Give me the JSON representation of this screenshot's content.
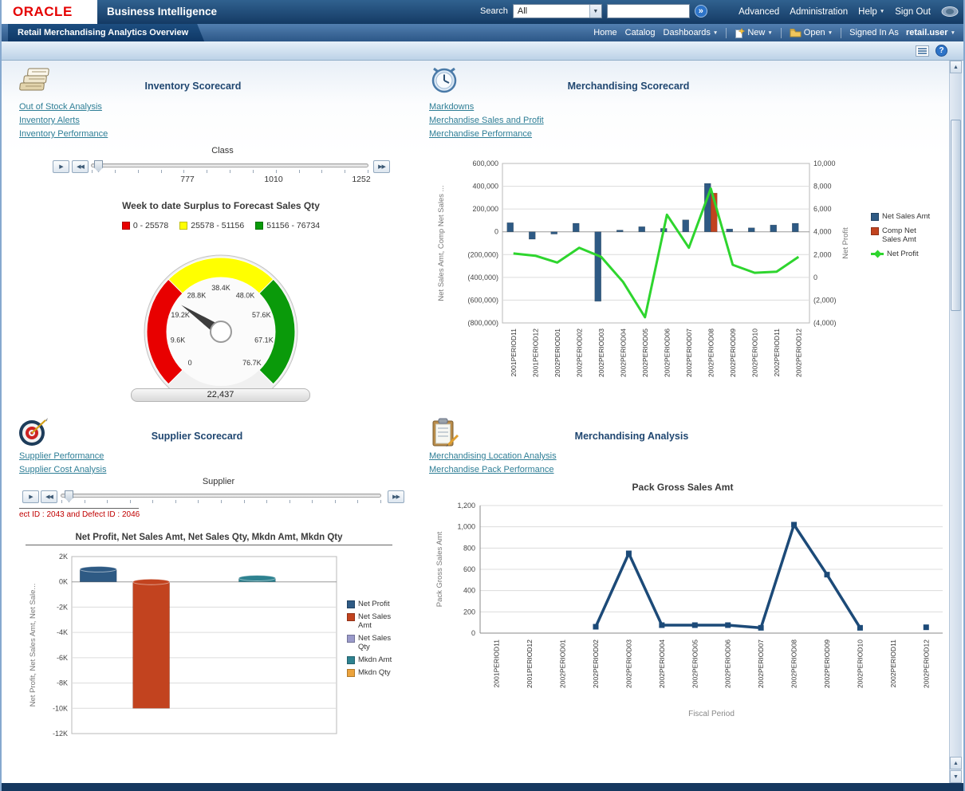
{
  "header": {
    "logo": "ORACLE",
    "product": "Business Intelligence",
    "search_label": "Search",
    "search_scope": "All",
    "search_value": "",
    "go_label": "»",
    "advanced": "Advanced",
    "administration": "Administration",
    "help": "Help",
    "sign_out": "Sign Out"
  },
  "tabbar": {
    "active_tab": "Retail Merchandising Analytics Overview",
    "home": "Home",
    "catalog": "Catalog",
    "dashboards": "Dashboards",
    "new_label": "New",
    "open_label": "Open",
    "signed_in_as": "Signed In As",
    "user": "retail.user"
  },
  "toolbar": {
    "help_label": "?"
  },
  "icons": {
    "play": "▶",
    "step_back": "◀◀",
    "step_forward": "▶▶",
    "caret_down": "▼",
    "caret_up": "▲"
  },
  "sections": {
    "inventory": {
      "title": "Inventory Scorecard",
      "links": [
        "Out of Stock Analysis",
        "Inventory Alerts",
        "Inventory Performance"
      ],
      "prompt_label": "Class",
      "slider_values": [
        "777",
        "1010",
        "1252"
      ],
      "chart_data": {
        "type": "gauge",
        "title": "Week to date Surplus to Forecast Sales Qty",
        "min": 0,
        "max": 76734,
        "value": 22437,
        "value_label": "22,437",
        "bands": [
          {
            "label": "0 - 25578",
            "from": 0,
            "to": 25578,
            "color": "#e80000"
          },
          {
            "label": "25578 - 51156",
            "from": 25578,
            "to": 51156,
            "color": "#ffff00"
          },
          {
            "label": "51156 - 76734",
            "from": 51156,
            "to": 76734,
            "color": "#0a9a0a"
          }
        ],
        "tick_labels": [
          "0",
          "9.6K",
          "19.2K",
          "28.8K",
          "38.4K",
          "48.0K",
          "57.6K",
          "67.1K",
          "76.7K"
        ]
      }
    },
    "merch_scorecard": {
      "title": "Merchandising Scorecard",
      "links": [
        "Markdowns",
        "Merchandise Sales and Profit",
        "Merchandise Performance"
      ],
      "chart_data": {
        "type": "combo",
        "categories": [
          "2001PERIOD11",
          "2001PERIOD12",
          "2002PERIOD01",
          "2002PERIOD02",
          "2002PERIOD03",
          "2002PERIOD04",
          "2002PERIOD05",
          "2002PERIOD06",
          "2002PERIOD07",
          "2002PERIOD08",
          "2002PERIOD09",
          "2002PERIOD10",
          "2002PERIOD11",
          "2002PERIOD12"
        ],
        "left_axis": {
          "label": "Net Sales Amt, Comp Net Sales ...",
          "min": -800000,
          "max": 600000,
          "step": 200000,
          "tick_labels": [
            "600,000",
            "400,000",
            "200,000",
            "0",
            "(200,000)",
            "(400,000)",
            "(600,000)",
            "(800,000)"
          ]
        },
        "right_axis": {
          "label": "Net Profit",
          "min": -4000,
          "max": 10000,
          "step": 2000,
          "tick_labels": [
            "10,000",
            "8,000",
            "6,000",
            "4,000",
            "2,000",
            "0",
            "(2,000)",
            "(4,000)"
          ]
        },
        "series": [
          {
            "name": "Net Sales Amt",
            "type": "bar",
            "axis": "left",
            "color": "#2e5a84",
            "values": [
              80000,
              -65000,
              -20000,
              75000,
              -610000,
              15000,
              45000,
              30000,
              105000,
              425000,
              25000,
              35000,
              60000,
              75000
            ]
          },
          {
            "name": "Comp Net Sales Amt",
            "type": "bar",
            "axis": "left",
            "color": "#c2431f",
            "values": [
              0,
              0,
              0,
              0,
              0,
              0,
              0,
              0,
              0,
              340000,
              0,
              0,
              0,
              0
            ]
          },
          {
            "name": "Net Profit",
            "type": "line",
            "axis": "right",
            "color": "#2ed52e",
            "values": [
              2100,
              1900,
              1300,
              2600,
              1800,
              -400,
              -3500,
              5500,
              2600,
              7800,
              1100,
              400,
              500,
              1800
            ]
          }
        ]
      }
    },
    "supplier": {
      "title": "Supplier Scorecard",
      "links": [
        "Supplier Performance",
        "Supplier Cost Analysis"
      ],
      "prompt_label": "Supplier",
      "note": "ect ID : 2043 and Defect ID : 2046",
      "chart_data": {
        "type": "bar",
        "title": "Net Profit, Net Sales Amt, Net Sales Qty, Mkdn Amt, Mkdn Qty",
        "ylabel": "Net Profit, Net Sales Amt, Net Sale...",
        "ylim": [
          -12000,
          2000
        ],
        "ystep": 2000,
        "ytick_labels": [
          "2K",
          "0K",
          "-2K",
          "-4K",
          "-6K",
          "-8K",
          "-10K",
          "-12K"
        ],
        "series": [
          {
            "name": "Net Profit",
            "color": "#2e5a84",
            "value": 1000
          },
          {
            "name": "Net Sales Amt",
            "color": "#c2431f",
            "value": -10000
          },
          {
            "name": "Net Sales Qty",
            "color": "#9a9aca",
            "value": 0
          },
          {
            "name": "Mkdn Amt",
            "color": "#2e8290",
            "value": 300
          },
          {
            "name": "Mkdn Qty",
            "color": "#eca33c",
            "value": 0
          }
        ]
      }
    },
    "merch_analysis": {
      "title": "Merchandising Analysis",
      "links": [
        "Merchandising Location Analysis",
        "Merchandise Pack Performance"
      ],
      "chart_data": {
        "type": "line",
        "title": "Pack Gross Sales Amt",
        "xlabel": "Fiscal Period",
        "ylabel": "Pack Gross Sales Amt",
        "ylim": [
          0,
          1200
        ],
        "ystep": 200,
        "ytick_labels": [
          "0",
          "200",
          "400",
          "600",
          "800",
          "1,000",
          "1,200"
        ],
        "color": "#1c4a78",
        "categories": [
          "2001PERIOD11",
          "2001PERIOD12",
          "2002PERIOD01",
          "2002PERIOD02",
          "2002PERIOD03",
          "2002PERIOD04",
          "2002PERIOD05",
          "2002PERIOD06",
          "2002PERIOD07",
          "2002PERIOD08",
          "2002PERIOD09",
          "2002PERIOD10",
          "2002PERIOD11",
          "2002PERIOD12"
        ],
        "values": [
          null,
          null,
          null,
          60,
          750,
          75,
          75,
          75,
          50,
          1020,
          550,
          50,
          null,
          55
        ]
      }
    }
  }
}
